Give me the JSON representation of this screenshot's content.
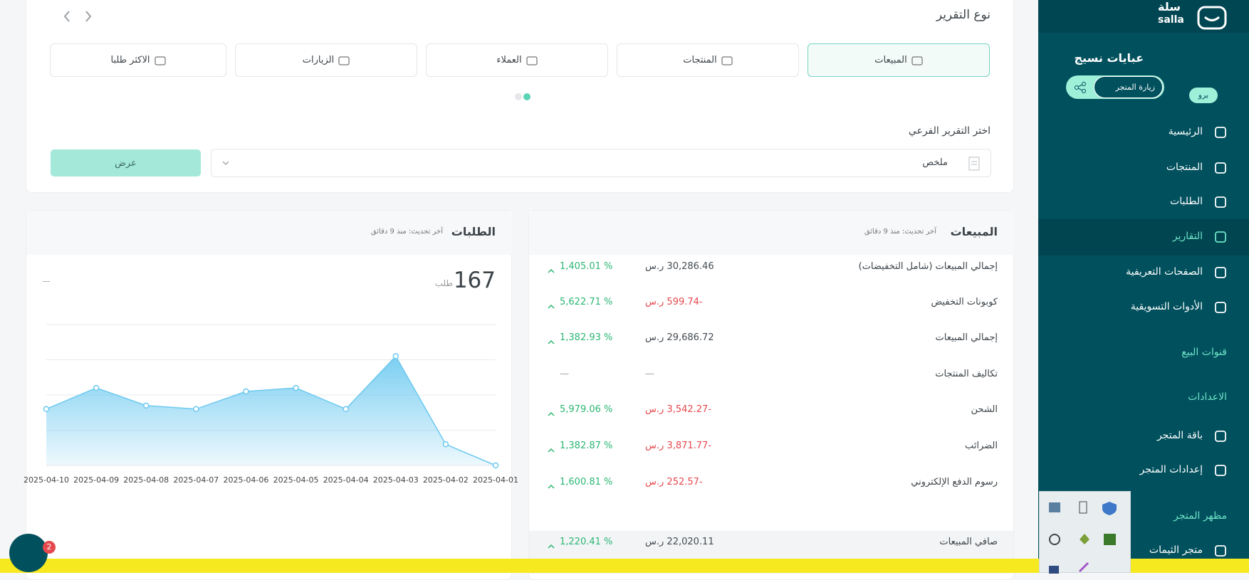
{
  "sidebar": {
    "logo": "سلة",
    "logo_latin": "salla",
    "store_name": "عبايات نسيج",
    "visit_store": "زيارة المتجر",
    "plan": "برو",
    "entries": [
      {
        "label": "الرئيسية"
      },
      {
        "label": "المنتجات"
      },
      {
        "label": "الطلبات"
      },
      {
        "label": "التقارير",
        "active": true
      },
      {
        "label": "الصفحات التعريفية"
      },
      {
        "label": "الأدوات التسويقية"
      },
      {
        "label": "قنوات البيع",
        "section": true
      },
      {
        "label": "الاعدادات",
        "section": true
      },
      {
        "label": "باقة المتجر"
      },
      {
        "label": "إعدادات المتجر"
      },
      {
        "label": "مظهر المتجر",
        "section": true
      },
      {
        "label": "متجر الثيمات"
      }
    ]
  },
  "report": {
    "title": "نوع التقرير",
    "tabs": [
      {
        "label": "المبيعات",
        "active": true
      },
      {
        "label": "المنتجات"
      },
      {
        "label": "العملاء"
      },
      {
        "label": "الزيارات"
      },
      {
        "label": "الاكثر طلبا"
      }
    ],
    "subreport_label": "اختر التقرير الفرعي",
    "subreport_value": "ملخص",
    "view_button": "عرض"
  },
  "sales": {
    "title": "المبيعات",
    "updated": "آخر تحديث: منذ 9 دقائق",
    "rows": [
      {
        "label": "إجمالي المبيعات (شامل التخفيضات)",
        "amount": "30,286.46 ر.س",
        "change": "1,405.01 %",
        "trend": "up",
        "color": "#444b52"
      },
      {
        "label": "كوبونات التخفيض",
        "amount": "-599.74 ر.س",
        "change": "5,622.71 %",
        "trend": "up",
        "color": "#e5484d"
      },
      {
        "label": "إجمالي المبيعات",
        "amount": "29,686.72 ر.س",
        "change": "1,382.93 %",
        "trend": "up",
        "color": "#444b52"
      },
      {
        "label": "تكاليف المنتجات",
        "amount": "—",
        "change": "—",
        "color": "#9aa0a6"
      },
      {
        "label": "الشحن",
        "amount": "-3,542.27 ر.س",
        "change": "5,979.06 %",
        "trend": "up",
        "color": "#e5484d"
      },
      {
        "label": "الضرائب",
        "amount": "-3,871.77 ر.س",
        "change": "1,382.87 %",
        "trend": "up",
        "color": "#e5484d"
      },
      {
        "label": "رسوم الدفع الإلكتروني",
        "amount": "-252.57 ر.س",
        "change": "1,600.81 %",
        "trend": "up",
        "color": "#e5484d"
      },
      {
        "label": "صافي المبيعات",
        "amount": "22,020.11 ر.س",
        "change": "1,220.41 %",
        "trend": "up",
        "color": "#444b52"
      }
    ]
  },
  "orders": {
    "title": "الطلبات",
    "updated": "آخر تحديث: منذ 9 دقائق",
    "total": 167,
    "unit": "طلب",
    "placeholder": "—"
  },
  "chart_data": {
    "type": "area",
    "x": [
      "2025-04-01",
      "2025-04-02",
      "2025-04-03",
      "2025-04-04",
      "2025-04-05",
      "2025-04-06",
      "2025-04-07",
      "2025-04-08",
      "2025-04-09",
      "2025-04-10"
    ],
    "values": [
      0,
      6,
      31,
      16,
      22,
      21,
      16,
      17,
      22,
      16
    ],
    "ylim": [
      0,
      40
    ],
    "yticks": [
      0,
      10,
      20,
      30,
      40
    ],
    "grid": true,
    "color": "#6cc9f0"
  },
  "chat_badge": 2
}
